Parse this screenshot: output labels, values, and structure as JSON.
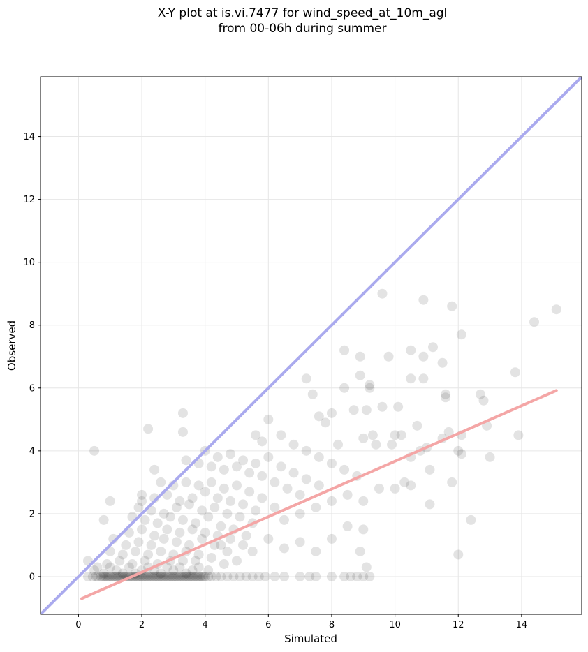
{
  "chart_data": {
    "type": "scatter",
    "title_lines": [
      "X-Y plot at is.vi.7477 for wind_speed_at_10m_agl",
      "from 00-06h during summer"
    ],
    "xlabel": "Simulated",
    "ylabel": "Observed",
    "xlim": [
      -1.2,
      15.9
    ],
    "ylim": [
      -1.2,
      15.9
    ],
    "xticks": [
      0,
      2,
      4,
      6,
      8,
      10,
      12,
      14
    ],
    "yticks": [
      0,
      2,
      4,
      6,
      8,
      10,
      12,
      14
    ],
    "grid": true,
    "point_color": "#000000",
    "identity_line": {
      "color": "#aaaaee",
      "from": [
        -1.2,
        -1.2
      ],
      "to": [
        15.9,
        15.9
      ]
    },
    "fit_line": {
      "color": "#f4a6a6",
      "from": [
        0.1,
        -0.7
      ],
      "to": [
        15.1,
        5.92
      ]
    },
    "points": [
      [
        0.3,
        0
      ],
      [
        0.45,
        0
      ],
      [
        0.55,
        0
      ],
      [
        0.6,
        0
      ],
      [
        0.7,
        0
      ],
      [
        0.75,
        0
      ],
      [
        0.8,
        0
      ],
      [
        0.85,
        0
      ],
      [
        0.9,
        0
      ],
      [
        0.95,
        0
      ],
      [
        1.0,
        0
      ],
      [
        1.05,
        0
      ],
      [
        1.1,
        0
      ],
      [
        1.15,
        0
      ],
      [
        1.2,
        0
      ],
      [
        1.25,
        0
      ],
      [
        1.3,
        0
      ],
      [
        1.35,
        0
      ],
      [
        1.4,
        0
      ],
      [
        1.45,
        0
      ],
      [
        1.5,
        0
      ],
      [
        1.55,
        0
      ],
      [
        1.6,
        0
      ],
      [
        1.65,
        0
      ],
      [
        1.7,
        0
      ],
      [
        1.75,
        0
      ],
      [
        1.8,
        0
      ],
      [
        1.85,
        0
      ],
      [
        1.9,
        0
      ],
      [
        1.95,
        0
      ],
      [
        2.0,
        0
      ],
      [
        2.05,
        0
      ],
      [
        2.1,
        0
      ],
      [
        2.15,
        0
      ],
      [
        2.2,
        0
      ],
      [
        2.25,
        0
      ],
      [
        2.3,
        0
      ],
      [
        2.35,
        0
      ],
      [
        2.4,
        0
      ],
      [
        2.45,
        0
      ],
      [
        2.5,
        0
      ],
      [
        2.55,
        0
      ],
      [
        2.6,
        0
      ],
      [
        2.65,
        0
      ],
      [
        2.7,
        0
      ],
      [
        2.75,
        0
      ],
      [
        2.8,
        0
      ],
      [
        2.85,
        0
      ],
      [
        2.9,
        0
      ],
      [
        2.95,
        0
      ],
      [
        3.0,
        0
      ],
      [
        3.05,
        0
      ],
      [
        3.1,
        0
      ],
      [
        3.15,
        0
      ],
      [
        3.2,
        0
      ],
      [
        3.25,
        0
      ],
      [
        3.3,
        0
      ],
      [
        3.35,
        0
      ],
      [
        3.4,
        0
      ],
      [
        3.45,
        0
      ],
      [
        3.5,
        0
      ],
      [
        3.55,
        0
      ],
      [
        3.6,
        0
      ],
      [
        3.65,
        0
      ],
      [
        3.7,
        0
      ],
      [
        3.75,
        0
      ],
      [
        3.8,
        0
      ],
      [
        3.85,
        0
      ],
      [
        3.9,
        0
      ],
      [
        3.95,
        0
      ],
      [
        4.0,
        0
      ],
      [
        4.1,
        0
      ],
      [
        4.2,
        0
      ],
      [
        4.35,
        0
      ],
      [
        4.5,
        0
      ],
      [
        4.7,
        0
      ],
      [
        4.9,
        0
      ],
      [
        5.1,
        0
      ],
      [
        5.3,
        0
      ],
      [
        5.5,
        0
      ],
      [
        5.7,
        0
      ],
      [
        5.9,
        0
      ],
      [
        6.2,
        0
      ],
      [
        6.5,
        0
      ],
      [
        7.0,
        0
      ],
      [
        7.3,
        0
      ],
      [
        8.0,
        0
      ],
      [
        8.4,
        0
      ],
      [
        8.8,
        0
      ],
      [
        9.2,
        0
      ],
      [
        0.3,
        0.5
      ],
      [
        0.6,
        0.3
      ],
      [
        0.8,
        0.1
      ],
      [
        1.0,
        0.3
      ],
      [
        1.2,
        0.2
      ],
      [
        1.4,
        0.1
      ],
      [
        1.6,
        0.3
      ],
      [
        1.8,
        0.1
      ],
      [
        2.0,
        0.2
      ],
      [
        2.2,
        0.3
      ],
      [
        2.4,
        0.2
      ],
      [
        2.6,
        0.1
      ],
      [
        2.8,
        0.3
      ],
      [
        3.0,
        0.2
      ],
      [
        3.2,
        0.3
      ],
      [
        3.4,
        0.1
      ],
      [
        3.6,
        0.2
      ],
      [
        3.8,
        0.3
      ],
      [
        0.5,
        0.2
      ],
      [
        0.9,
        0.4
      ],
      [
        1.3,
        0.5
      ],
      [
        1.7,
        0.4
      ],
      [
        2.1,
        0.5
      ],
      [
        2.5,
        0.4
      ],
      [
        2.9,
        0.5
      ],
      [
        3.3,
        0.5
      ],
      [
        3.7,
        0.5
      ],
      [
        4.1,
        0.2
      ],
      [
        1.0,
        0.8
      ],
      [
        1.4,
        0.7
      ],
      [
        1.8,
        0.8
      ],
      [
        2.2,
        0.7
      ],
      [
        2.6,
        0.8
      ],
      [
        3.0,
        0.7
      ],
      [
        3.4,
        0.8
      ],
      [
        3.8,
        0.7
      ],
      [
        4.2,
        0.6
      ],
      [
        4.6,
        0.4
      ],
      [
        1.1,
        1.2
      ],
      [
        1.5,
        1.0
      ],
      [
        1.9,
        1.1
      ],
      [
        2.3,
        1.0
      ],
      [
        2.7,
        1.2
      ],
      [
        3.1,
        1.1
      ],
      [
        3.5,
        1.0
      ],
      [
        3.9,
        1.2
      ],
      [
        4.3,
        1.0
      ],
      [
        4.7,
        0.8
      ],
      [
        1.6,
        1.4
      ],
      [
        2.0,
        1.5
      ],
      [
        2.4,
        1.3
      ],
      [
        2.8,
        1.5
      ],
      [
        3.2,
        1.4
      ],
      [
        3.6,
        1.5
      ],
      [
        4.0,
        1.4
      ],
      [
        4.4,
        1.3
      ],
      [
        4.8,
        1.2
      ],
      [
        5.2,
        1.0
      ],
      [
        1.7,
        1.9
      ],
      [
        2.1,
        1.8
      ],
      [
        2.5,
        1.7
      ],
      [
        2.9,
        1.9
      ],
      [
        3.3,
        1.8
      ],
      [
        3.7,
        1.7
      ],
      [
        4.1,
        1.9
      ],
      [
        4.5,
        1.6
      ],
      [
        4.9,
        1.5
      ],
      [
        5.3,
        1.3
      ],
      [
        1.9,
        2.2
      ],
      [
        2.3,
        2.1
      ],
      [
        2.7,
        2.0
      ],
      [
        3.1,
        2.2
      ],
      [
        3.5,
        2.3
      ],
      [
        3.9,
        2.1
      ],
      [
        4.3,
        2.2
      ],
      [
        4.7,
        2.0
      ],
      [
        5.1,
        1.9
      ],
      [
        5.5,
        1.7
      ],
      [
        2.0,
        2.6
      ],
      [
        2.4,
        2.5
      ],
      [
        2.8,
        2.6
      ],
      [
        3.2,
        2.4
      ],
      [
        3.6,
        2.5
      ],
      [
        4.0,
        2.7
      ],
      [
        4.4,
        2.5
      ],
      [
        4.8,
        2.4
      ],
      [
        5.2,
        2.3
      ],
      [
        5.6,
        2.1
      ],
      [
        2.6,
        3.0
      ],
      [
        3.0,
        2.9
      ],
      [
        3.4,
        3.0
      ],
      [
        3.8,
        2.9
      ],
      [
        4.2,
        3.0
      ],
      [
        4.6,
        2.8
      ],
      [
        5.0,
        2.9
      ],
      [
        5.4,
        2.7
      ],
      [
        5.8,
        2.5
      ],
      [
        6.2,
        2.2
      ],
      [
        3.4,
        3.7
      ],
      [
        3.8,
        3.6
      ],
      [
        4.2,
        3.5
      ],
      [
        4.6,
        3.4
      ],
      [
        5.0,
        3.5
      ],
      [
        5.4,
        3.3
      ],
      [
        5.8,
        3.2
      ],
      [
        6.2,
        3.0
      ],
      [
        6.6,
        2.8
      ],
      [
        7.0,
        2.6
      ],
      [
        4.0,
        4.0
      ],
      [
        4.4,
        3.8
      ],
      [
        4.8,
        3.9
      ],
      [
        5.2,
        3.7
      ],
      [
        5.6,
        3.6
      ],
      [
        6.0,
        3.8
      ],
      [
        6.4,
        3.5
      ],
      [
        6.8,
        3.3
      ],
      [
        7.2,
        3.1
      ],
      [
        7.6,
        2.9
      ],
      [
        5.6,
        4.5
      ],
      [
        5.8,
        4.3
      ],
      [
        6.0,
        5.0
      ],
      [
        6.4,
        4.5
      ],
      [
        6.8,
        4.2
      ],
      [
        7.2,
        4.0
      ],
      [
        7.6,
        3.8
      ],
      [
        8.0,
        3.6
      ],
      [
        8.4,
        3.4
      ],
      [
        8.8,
        3.2
      ],
      [
        4.5,
        1.0
      ],
      [
        5.0,
        0.5
      ],
      [
        5.5,
        0.8
      ],
      [
        6.0,
        1.2
      ],
      [
        6.5,
        0.9
      ],
      [
        7.0,
        1.1
      ],
      [
        7.5,
        0.8
      ],
      [
        8.0,
        1.2
      ],
      [
        8.5,
        1.6
      ],
      [
        9.0,
        1.5
      ],
      [
        6.5,
        1.8
      ],
      [
        7.0,
        2.0
      ],
      [
        7.5,
        2.2
      ],
      [
        8.0,
        2.4
      ],
      [
        8.5,
        2.6
      ],
      [
        9.0,
        2.4
      ],
      [
        9.5,
        2.8
      ],
      [
        10.0,
        2.8
      ],
      [
        10.3,
        3.0
      ],
      [
        10.5,
        2.9
      ],
      [
        7.2,
        6.3
      ],
      [
        7.4,
        5.8
      ],
      [
        7.6,
        5.1
      ],
      [
        7.8,
        4.9
      ],
      [
        8.0,
        5.2
      ],
      [
        8.2,
        4.2
      ],
      [
        8.4,
        6.0
      ],
      [
        8.4,
        7.2
      ],
      [
        8.7,
        5.3
      ],
      [
        8.9,
        6.4
      ],
      [
        8.9,
        7.0
      ],
      [
        9.0,
        4.4
      ],
      [
        9.1,
        5.3
      ],
      [
        9.2,
        6.0
      ],
      [
        9.2,
        6.1
      ],
      [
        9.3,
        4.5
      ],
      [
        9.4,
        4.2
      ],
      [
        9.6,
        5.4
      ],
      [
        9.6,
        9.0
      ],
      [
        9.8,
        7.0
      ],
      [
        9.9,
        4.2
      ],
      [
        10.0,
        4.5
      ],
      [
        10.1,
        5.4
      ],
      [
        10.2,
        4.5
      ],
      [
        10.5,
        3.8
      ],
      [
        10.5,
        6.3
      ],
      [
        10.5,
        7.2
      ],
      [
        10.7,
        4.8
      ],
      [
        10.8,
        4.0
      ],
      [
        10.9,
        6.3
      ],
      [
        10.9,
        7.0
      ],
      [
        10.9,
        8.8
      ],
      [
        11.0,
        4.1
      ],
      [
        11.1,
        2.3
      ],
      [
        11.1,
        3.4
      ],
      [
        11.2,
        7.3
      ],
      [
        11.5,
        4.4
      ],
      [
        11.5,
        6.8
      ],
      [
        11.6,
        5.7
      ],
      [
        11.6,
        5.8
      ],
      [
        11.7,
        4.6
      ],
      [
        11.8,
        3.0
      ],
      [
        11.8,
        8.6
      ],
      [
        12.0,
        0.7
      ],
      [
        12.0,
        4.0
      ],
      [
        12.1,
        4.5
      ],
      [
        12.1,
        3.9
      ],
      [
        12.1,
        7.7
      ],
      [
        12.4,
        1.8
      ],
      [
        12.7,
        5.8
      ],
      [
        12.8,
        5.6
      ],
      [
        12.9,
        4.8
      ],
      [
        13.0,
        3.8
      ],
      [
        13.8,
        6.5
      ],
      [
        13.9,
        4.5
      ],
      [
        14.4,
        8.1
      ],
      [
        15.1,
        8.5
      ],
      [
        0.5,
        4.0
      ],
      [
        2.2,
        4.7
      ],
      [
        3.3,
        5.2
      ],
      [
        3.3,
        4.6
      ],
      [
        2.4,
        3.4
      ],
      [
        2.0,
        2.4
      ],
      [
        1.0,
        2.4
      ],
      [
        0.8,
        1.8
      ],
      [
        9.0,
        0.0
      ],
      [
        8.9,
        0.8
      ],
      [
        9.1,
        0.3
      ],
      [
        8.6,
        0.0
      ],
      [
        7.5,
        0.0
      ]
    ]
  }
}
